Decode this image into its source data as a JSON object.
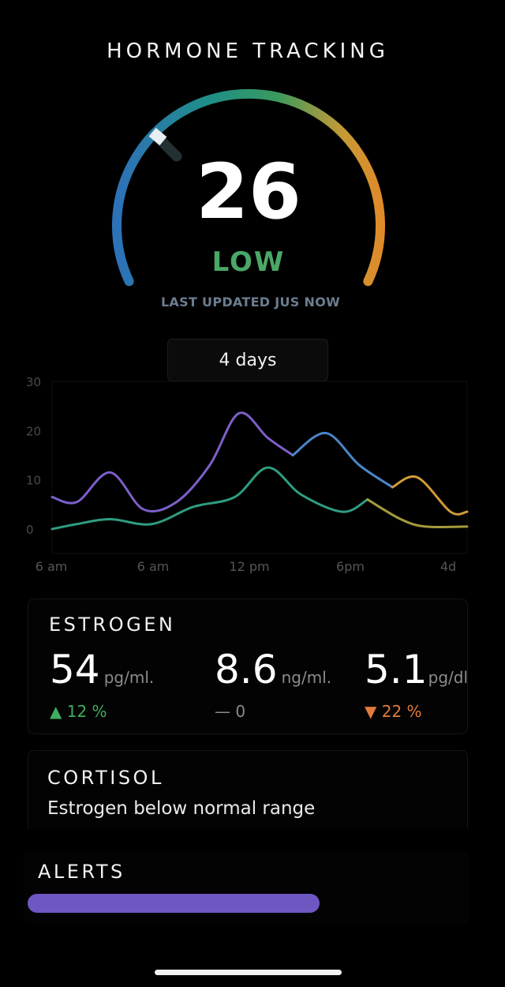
{
  "header": {
    "title": "HORMONE TRACKING"
  },
  "gauge": {
    "score": "26",
    "level": "LOW",
    "level_color": "#4aa866",
    "updated_text": "LAST UPDATED JUS NOW",
    "value_fraction": 0.26,
    "gradient_colors": [
      "#2d72b8",
      "#1f8f86",
      "#3a9a5e",
      "#d7962b",
      "#e08a2a"
    ]
  },
  "time_range": {
    "label": "4 days"
  },
  "chart_data": {
    "type": "line",
    "x_ticks": [
      "6 am",
      "6 am",
      "12 pm",
      "6pm",
      "4d"
    ],
    "y_ticks": [
      "30",
      "20",
      "10",
      "0"
    ],
    "ylim": [
      0,
      30
    ],
    "grid": false,
    "series": [
      {
        "segments": [
          {
            "color": "#7d5fc9",
            "points": [
              [
                0,
                6.5
              ],
              [
                6,
                5.5
              ],
              [
                14,
                11.5
              ],
              [
                22,
                4
              ],
              [
                30,
                5.5
              ],
              [
                38,
                13
              ],
              [
                45,
                23.5
              ],
              [
                52,
                18.5
              ],
              [
                58,
                15
              ]
            ]
          },
          {
            "color": "#4a86c8",
            "points": [
              [
                58,
                15
              ],
              [
                66,
                19.5
              ],
              [
                74,
                13
              ],
              [
                82,
                8.5
              ]
            ]
          },
          {
            "color": "#d29a3a",
            "points": [
              [
                82,
                8.5
              ],
              [
                88,
                10.5
              ],
              [
                96,
                3.5
              ],
              [
                100,
                3.5
              ]
            ]
          }
        ]
      },
      {
        "segments": [
          {
            "color": "#2f9c82",
            "points": [
              [
                0,
                0
              ],
              [
                6,
                1
              ],
              [
                14,
                2
              ],
              [
                24,
                1
              ],
              [
                34,
                4.5
              ],
              [
                44,
                6.5
              ],
              [
                52,
                12.5
              ],
              [
                60,
                7
              ],
              [
                70,
                3.5
              ],
              [
                76,
                6
              ]
            ]
          },
          {
            "color": "#a49a3c",
            "points": [
              [
                76,
                6
              ],
              [
                84,
                2
              ],
              [
                90,
                0.5
              ],
              [
                100,
                0.5
              ]
            ]
          }
        ]
      }
    ]
  },
  "estrogen": {
    "title": "ESTROGEN",
    "metrics": [
      {
        "value": "54",
        "unit": "pg/ml.",
        "delta": "▲ 12 %",
        "trend": "up"
      },
      {
        "value": "8.6",
        "unit": "ng/ml.",
        "delta": "— 0",
        "trend": "flat"
      },
      {
        "value": "5.1",
        "unit": "pg/dl",
        "delta": "▼ 22 %",
        "trend": "down"
      }
    ],
    "colors": {
      "up": "#3fae5f",
      "flat": "#8a8a8a",
      "down": "#e27a3c"
    }
  },
  "cortisol": {
    "title": "CORTISOL",
    "message": "Estrogen below normal range"
  },
  "alerts": {
    "title": "ALERTS",
    "bar_color": "#6f57c2"
  }
}
